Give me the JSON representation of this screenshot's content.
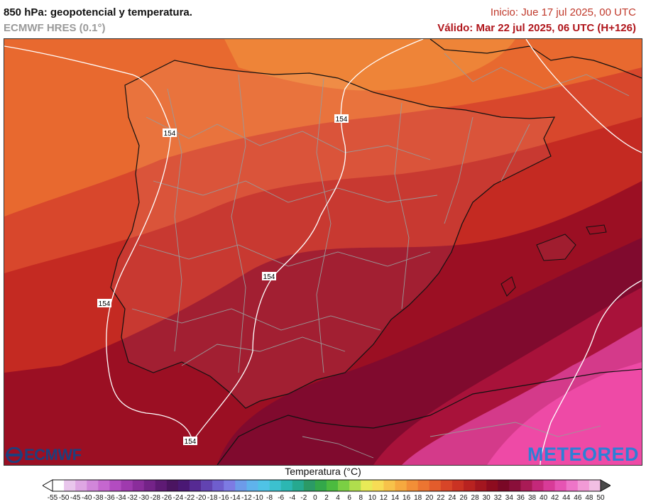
{
  "header": {
    "title": "850 hPa: geopotencial y temperatura.",
    "model": "ECMWF HRES (0.1°)",
    "init": "Inicio: Jue 17 jul 2025, 00 UTC",
    "valid": "Válido: Mar 22 jul 2025, 06 UTC (H+126)"
  },
  "map": {
    "isohypse_label": "154",
    "colors": {
      "orange": "#e8692f",
      "light_orange": "#ef8a3a",
      "red_orange": "#d8472c",
      "red": "#c42a22",
      "dark_red": "#9b0f23",
      "maroon": "#800a2e",
      "crimson": "#a8123a",
      "magenta": "#d43a8a",
      "pink": "#ee4aa6"
    }
  },
  "logos": {
    "left": "ECMWF",
    "right": "METEORED"
  },
  "legend": {
    "title": "Temperatura (°C)",
    "ticks": [
      "-55",
      "-50",
      "-45",
      "-40",
      "-38",
      "-36",
      "-34",
      "-32",
      "-30",
      "-28",
      "-26",
      "-24",
      "-22",
      "-20",
      "-18",
      "-16",
      "-14",
      "-12",
      "-10",
      "-8",
      "-6",
      "-4",
      "-2",
      "0",
      "2",
      "4",
      "6",
      "8",
      "10",
      "12",
      "14",
      "16",
      "18",
      "20",
      "22",
      "24",
      "26",
      "28",
      "30",
      "32",
      "34",
      "36",
      "38",
      "40",
      "42",
      "44",
      "46",
      "48",
      "50"
    ],
    "colors": [
      "#ffffff",
      "#e9c6ec",
      "#dea6e3",
      "#d186da",
      "#c567cf",
      "#b34cc0",
      "#9f3aae",
      "#8a2d9b",
      "#742388",
      "#5e1a74",
      "#4b1461",
      "#4a1874",
      "#562a93",
      "#6243b1",
      "#6f5ecd",
      "#7d7be3",
      "#6d9be9",
      "#5fb3ec",
      "#4fc3e6",
      "#3cc1cf",
      "#2cb7b2",
      "#26a98f",
      "#2b9a66",
      "#33a84a",
      "#4cbb3f",
      "#7bcf44",
      "#b0de4d",
      "#e8ea57",
      "#f7dc55",
      "#f7c24a",
      "#f6a93f",
      "#f28f37",
      "#ec7531",
      "#e35c2c",
      "#d84528",
      "#ca3223",
      "#b82220",
      "#a3161f",
      "#8e0c1f",
      "#7a0826",
      "#8a0f3a",
      "#a91b56",
      "#c4287a",
      "#d83b98",
      "#e654b3",
      "#ee75c8",
      "#f29ad6",
      "#f2bfe3"
    ]
  }
}
